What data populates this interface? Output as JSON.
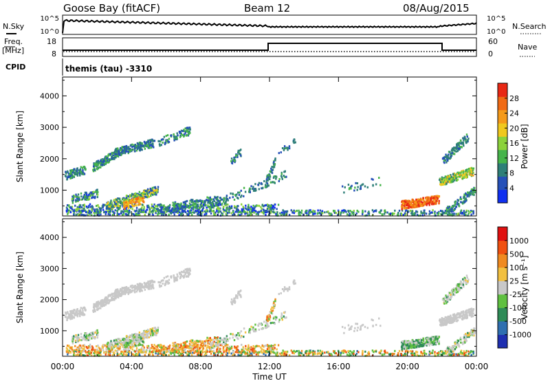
{
  "header": {
    "station": "Goose Bay (fitACF)",
    "beam": "Beam 12",
    "date": "08/Aug/2015"
  },
  "top_panels": {
    "nsky_label": "N.Sky",
    "nsearch_label": "N.Search",
    "noise_ticks": [
      "10^5",
      "10^0"
    ],
    "freq_label": "Freq.",
    "freq_unit": "[MHz]",
    "freq_ticks": [
      "18",
      "8"
    ],
    "nave_label": "Nave",
    "nave_ticks": [
      "60",
      "0"
    ],
    "cpid_label": "CPID",
    "cpid_text": "themis (tau) -3310"
  },
  "chart_data": [
    {
      "type": "heatmap",
      "name": "power",
      "ylabel": "Slant Range [km]",
      "yticks": [
        1000,
        2000,
        3000,
        4000
      ],
      "ylim": [
        180,
        4600
      ],
      "xlim": [
        0,
        24
      ],
      "colorbar": {
        "label": "Power [dB]",
        "ticks": [
          4,
          8,
          12,
          16,
          20,
          24,
          28
        ],
        "range": [
          0,
          32
        ],
        "colors": [
          "#1030f0",
          "#2550b8",
          "#2e7f78",
          "#46b44a",
          "#8cd23c",
          "#f0c81e",
          "#f59a1a",
          "#f06a14",
          "#e82814"
        ]
      }
    },
    {
      "type": "heatmap",
      "name": "velocity",
      "ylabel": "Slant Range [km]",
      "xlabel": "Time UT",
      "yticks": [
        1000,
        2000,
        3000,
        4000
      ],
      "ylim": [
        180,
        4600
      ],
      "xlim": [
        0,
        24
      ],
      "xticks": [
        "00:00",
        "04:00",
        "08:00",
        "12:00",
        "16:00",
        "20:00",
        "00:00"
      ],
      "colorbar": {
        "label": "Velocity [m s⁻¹]",
        "ticks": [
          "1000",
          "500",
          "100",
          "25",
          "-25",
          "-100",
          "-500",
          "-1000"
        ],
        "colors": [
          "#1f2fb0",
          "#2f6fb0",
          "#2e8b57",
          "#5fc040",
          "#c8c8c8",
          "#f2c040",
          "#f08a20",
          "#f05010",
          "#e01010"
        ]
      }
    }
  ]
}
